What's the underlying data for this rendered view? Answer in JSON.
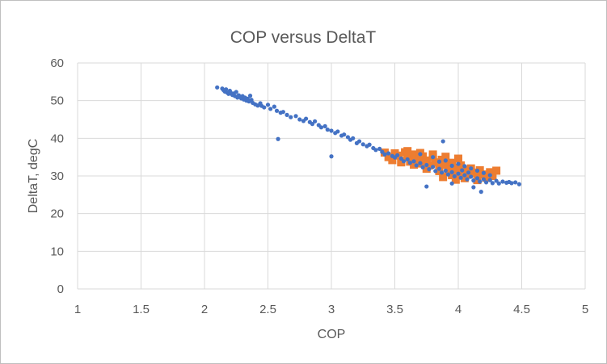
{
  "chart_data": {
    "type": "scatter",
    "title": "COP versus DeltaT",
    "xlabel": "COP",
    "ylabel": "DeltaT, degC",
    "xlim": [
      1,
      5
    ],
    "ylim": [
      0,
      60
    ],
    "x_ticks": [
      "1",
      "1.5",
      "2",
      "2.5",
      "3",
      "3.5",
      "4",
      "4.5",
      "5"
    ],
    "y_ticks": [
      "0",
      "10",
      "20",
      "30",
      "40",
      "50",
      "60"
    ],
    "grid": true,
    "legend": "none",
    "colors": {
      "series1": "#4472C4",
      "series2": "#ED7D31",
      "grid": "#D9D9D9",
      "text": "#595959"
    },
    "series": [
      {
        "marker": "circle",
        "color": "#4472C4",
        "points": [
          [
            2.1,
            53.5
          ],
          [
            2.14,
            53.2
          ],
          [
            2.15,
            52.8
          ],
          [
            2.16,
            52.4
          ],
          [
            2.17,
            53.0
          ],
          [
            2.18,
            52.1
          ],
          [
            2.19,
            51.8
          ],
          [
            2.2,
            52.6
          ],
          [
            2.21,
            52.0
          ],
          [
            2.22,
            51.5
          ],
          [
            2.23,
            51.9
          ],
          [
            2.24,
            51.2
          ],
          [
            2.25,
            52.3
          ],
          [
            2.26,
            50.8
          ],
          [
            2.27,
            51.4
          ],
          [
            2.28,
            51.0
          ],
          [
            2.29,
            50.6
          ],
          [
            2.3,
            51.2
          ],
          [
            2.31,
            50.3
          ],
          [
            2.32,
            50.8
          ],
          [
            2.33,
            50.0
          ],
          [
            2.34,
            50.5
          ],
          [
            2.35,
            49.8
          ],
          [
            2.36,
            51.3
          ],
          [
            2.37,
            50.2
          ],
          [
            2.38,
            49.4
          ],
          [
            2.4,
            49.0
          ],
          [
            2.42,
            48.7
          ],
          [
            2.44,
            49.3
          ],
          [
            2.45,
            48.6
          ],
          [
            2.47,
            48.2
          ],
          [
            2.5,
            48.9
          ],
          [
            2.52,
            47.8
          ],
          [
            2.55,
            48.4
          ],
          [
            2.57,
            47.3
          ],
          [
            2.6,
            46.8
          ],
          [
            2.58,
            39.8
          ],
          [
            2.62,
            47.0
          ],
          [
            2.65,
            46.2
          ],
          [
            2.68,
            45.6
          ],
          [
            2.72,
            45.9
          ],
          [
            2.75,
            45.0
          ],
          [
            2.78,
            44.6
          ],
          [
            2.8,
            45.2
          ],
          [
            2.83,
            44.3
          ],
          [
            2.85,
            43.8
          ],
          [
            2.87,
            44.5
          ],
          [
            2.9,
            43.5
          ],
          [
            2.92,
            42.9
          ],
          [
            2.95,
            43.2
          ],
          [
            2.97,
            42.3
          ],
          [
            3.0,
            42.0
          ],
          [
            3.0,
            35.2
          ],
          [
            3.03,
            41.4
          ],
          [
            3.05,
            41.8
          ],
          [
            3.08,
            40.7
          ],
          [
            3.1,
            41.0
          ],
          [
            3.13,
            40.3
          ],
          [
            3.15,
            39.6
          ],
          [
            3.17,
            40.0
          ],
          [
            3.2,
            38.7
          ],
          [
            3.22,
            39.2
          ],
          [
            3.25,
            38.4
          ],
          [
            3.28,
            37.9
          ],
          [
            3.3,
            38.3
          ],
          [
            3.33,
            37.4
          ],
          [
            3.35,
            36.9
          ],
          [
            3.38,
            37.2
          ],
          [
            3.4,
            36.4
          ],
          [
            3.42,
            35.7
          ],
          [
            3.45,
            36.0
          ],
          [
            3.48,
            35.3
          ],
          [
            3.5,
            34.9
          ],
          [
            3.52,
            35.5
          ],
          [
            3.55,
            34.6
          ],
          [
            3.57,
            33.9
          ],
          [
            3.6,
            34.4
          ],
          [
            3.62,
            33.5
          ],
          [
            3.65,
            33.9
          ],
          [
            3.67,
            32.8
          ],
          [
            3.7,
            33.4
          ],
          [
            3.72,
            32.3
          ],
          [
            3.75,
            32.9
          ],
          [
            3.77,
            31.8
          ],
          [
            3.8,
            32.4
          ],
          [
            3.82,
            31.3
          ],
          [
            3.85,
            31.9
          ],
          [
            3.87,
            30.9
          ],
          [
            3.88,
            39.2
          ],
          [
            3.9,
            31.4
          ],
          [
            3.92,
            30.4
          ],
          [
            3.95,
            31.0
          ],
          [
            3.97,
            29.9
          ],
          [
            4.0,
            30.6
          ],
          [
            4.02,
            29.5
          ],
          [
            4.05,
            30.2
          ],
          [
            4.07,
            29.1
          ],
          [
            4.1,
            29.8
          ],
          [
            4.12,
            28.8
          ],
          [
            4.15,
            29.4
          ],
          [
            4.17,
            28.5
          ],
          [
            4.2,
            29.1
          ],
          [
            4.22,
            28.3
          ],
          [
            4.25,
            28.9
          ],
          [
            4.27,
            28.1
          ],
          [
            4.3,
            28.7
          ],
          [
            4.32,
            28.0
          ],
          [
            4.35,
            28.5
          ],
          [
            4.38,
            28.2
          ],
          [
            4.4,
            28.4
          ],
          [
            4.42,
            28.1
          ],
          [
            4.45,
            28.3
          ],
          [
            4.48,
            27.8
          ],
          [
            3.75,
            27.2
          ],
          [
            4.18,
            25.8
          ],
          [
            4.12,
            27.0
          ],
          [
            3.95,
            28.0
          ],
          [
            3.7,
            35.8
          ],
          [
            3.8,
            35.0
          ],
          [
            3.9,
            34.1
          ],
          [
            4.0,
            33.2
          ],
          [
            4.05,
            32.6
          ],
          [
            4.1,
            32.0
          ],
          [
            4.15,
            31.4
          ],
          [
            4.2,
            30.8
          ],
          [
            4.25,
            30.2
          ],
          [
            3.85,
            33.8
          ],
          [
            3.95,
            32.7
          ],
          [
            4.03,
            31.5
          ],
          [
            4.08,
            30.9
          ]
        ]
      },
      {
        "marker": "square",
        "color": "#ED7D31",
        "points": [
          [
            3.42,
            36.2
          ],
          [
            3.45,
            35.0
          ],
          [
            3.48,
            34.2
          ],
          [
            3.5,
            36.0
          ],
          [
            3.53,
            35.4
          ],
          [
            3.55,
            34.0
          ],
          [
            3.58,
            36.3
          ],
          [
            3.6,
            35.1
          ],
          [
            3.62,
            33.8
          ],
          [
            3.65,
            35.7
          ],
          [
            3.67,
            34.5
          ],
          [
            3.7,
            33.3
          ],
          [
            3.72,
            35.2
          ],
          [
            3.75,
            34.1
          ],
          [
            3.77,
            32.8
          ],
          [
            3.8,
            35.0
          ],
          [
            3.82,
            33.6
          ],
          [
            3.85,
            32.4
          ],
          [
            3.87,
            34.3
          ],
          [
            3.9,
            33.0
          ],
          [
            3.92,
            31.8
          ],
          [
            3.95,
            33.5
          ],
          [
            3.97,
            32.2
          ],
          [
            4.0,
            31.0
          ],
          [
            4.02,
            32.8
          ],
          [
            4.05,
            31.6
          ],
          [
            4.07,
            30.3
          ],
          [
            4.1,
            32.0
          ],
          [
            4.12,
            30.9
          ],
          [
            4.15,
            29.8
          ],
          [
            4.17,
            31.5
          ],
          [
            4.2,
            30.4
          ],
          [
            4.22,
            29.5
          ],
          [
            4.25,
            31.0
          ],
          [
            4.27,
            30.0
          ],
          [
            3.6,
            36.6
          ],
          [
            3.7,
            36.1
          ],
          [
            3.8,
            35.7
          ],
          [
            3.9,
            35.1
          ],
          [
            4.0,
            34.6
          ],
          [
            3.75,
            31.9
          ],
          [
            3.85,
            31.3
          ],
          [
            3.95,
            30.2
          ],
          [
            4.05,
            29.4
          ],
          [
            4.15,
            28.9
          ],
          [
            3.65,
            33.0
          ],
          [
            3.55,
            33.6
          ],
          [
            3.88,
            29.7
          ],
          [
            4.3,
            31.4
          ],
          [
            3.98,
            29.0
          ]
        ]
      }
    ]
  }
}
